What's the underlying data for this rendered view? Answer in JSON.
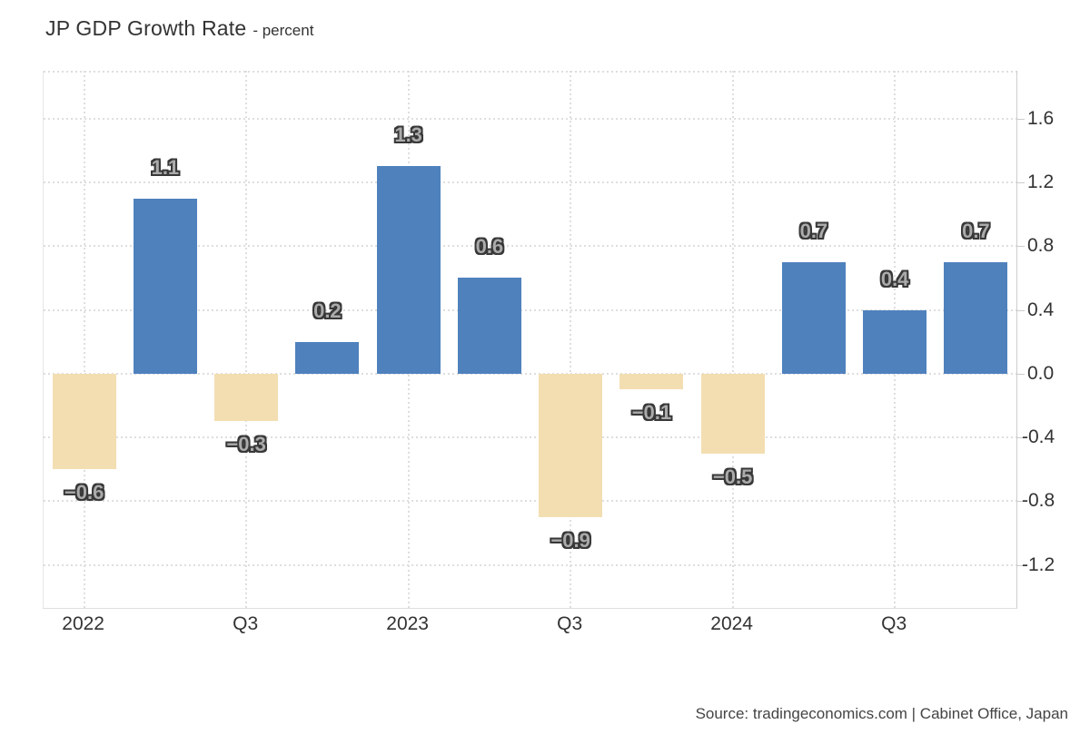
{
  "title": {
    "main": "JP GDP Growth Rate",
    "subtitle": "- percent"
  },
  "source": "Source: tradingeconomics.com | Cabinet Office, Japan",
  "chart_data": {
    "type": "bar",
    "title": "JP GDP Growth Rate",
    "ylabel": "percent",
    "xlabel": "",
    "values": [
      -0.6,
      1.1,
      -0.3,
      0.2,
      1.3,
      0.6,
      -0.9,
      -0.1,
      -0.5,
      0.7,
      0.4,
      0.7
    ],
    "bar_labels": [
      "−0.6",
      "1.1",
      "−0.3",
      "0.2",
      "1.3",
      "0.6",
      "−0.9",
      "−0.1",
      "−0.5",
      "0.7",
      "0.4",
      "0.7"
    ],
    "x_tick_labels": [
      "2022",
      "Q3",
      "2023",
      "Q3",
      "2024",
      "Q3"
    ],
    "x_tick_slots": [
      0,
      2,
      4,
      6,
      8,
      10
    ],
    "y_ticks": [
      1.6,
      1.2,
      0.8,
      0.4,
      0.0,
      -0.4,
      -0.8,
      -1.2
    ],
    "y_tick_labels": [
      "1.6",
      "1.2",
      "0.8",
      "0.4",
      "0.0",
      "-0.4",
      "-0.8",
      "-1.2"
    ],
    "ylim": [
      -1.47,
      1.9
    ],
    "grid": "dotted",
    "legend": "none",
    "colors": {
      "positive_bar": "#4F81BD",
      "negative_bar": "#F3DEB2",
      "grid_line": "#dedede",
      "axis_line": "#cccccc",
      "axis_text": "#333333",
      "bar_label_fill": "#ababab",
      "bar_label_outline": "#383838"
    }
  }
}
